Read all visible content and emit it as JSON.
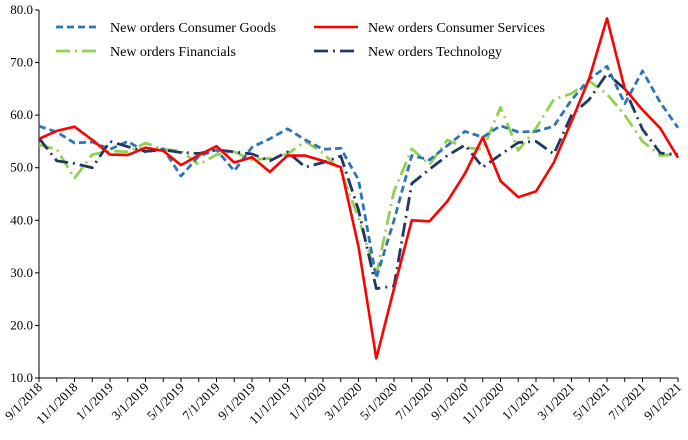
{
  "chart_data": {
    "type": "line",
    "title": "",
    "xlabel": "",
    "ylabel": "",
    "ylim": [
      10,
      80
    ],
    "yticks": [
      "10.0",
      "20.0",
      "30.0",
      "40.0",
      "50.0",
      "60.0",
      "70.0",
      "80.0"
    ],
    "xticks": [
      "9/1/2018",
      "11/1/2018",
      "1/1/2019",
      "3/1/2019",
      "5/1/2019",
      "7/1/2019",
      "9/1/2019",
      "11/1/2019",
      "1/1/2020",
      "3/1/2020",
      "5/1/2020",
      "7/1/2020",
      "9/1/2020",
      "11/1/2020",
      "1/1/2021",
      "3/1/2021",
      "5/1/2021",
      "7/1/2021",
      "9/1/2021"
    ],
    "x": [
      "2018-09",
      "2018-10",
      "2018-11",
      "2018-12",
      "2019-01",
      "2019-02",
      "2019-03",
      "2019-04",
      "2019-05",
      "2019-06",
      "2019-07",
      "2019-08",
      "2019-09",
      "2019-10",
      "2019-11",
      "2019-12",
      "2020-01",
      "2020-02",
      "2020-03",
      "2020-04",
      "2020-05",
      "2020-06",
      "2020-07",
      "2020-08",
      "2020-09",
      "2020-10",
      "2020-11",
      "2020-12",
      "2021-01",
      "2021-02",
      "2021-03",
      "2021-04",
      "2021-05",
      "2021-06",
      "2021-07",
      "2021-08",
      "2021-09"
    ],
    "series": [
      {
        "name": "New orders Consumer Goods",
        "color": "#2e75b6",
        "style": "short-dash",
        "values": [
          57.9,
          56.8,
          54.7,
          54.9,
          53.5,
          55.0,
          53.0,
          53.6,
          48.4,
          52.2,
          53.4,
          49.4,
          53.9,
          55.5,
          57.4,
          55.3,
          53.5,
          53.7,
          47.7,
          29.0,
          40.0,
          52.3,
          51.5,
          54.2,
          56.9,
          55.8,
          58.0,
          56.8,
          56.9,
          57.9,
          62.9,
          66.8,
          69.3,
          62.2,
          68.4,
          62.4,
          57.6
        ]
      },
      {
        "name": "New orders Consumer Services",
        "color": "#ff0000",
        "style": "solid",
        "values": [
          55.5,
          57.0,
          57.8,
          55.3,
          52.5,
          52.4,
          53.8,
          53.2,
          50.5,
          52.4,
          54.1,
          51.0,
          52.0,
          49.2,
          52.3,
          52.3,
          51.3,
          50.1,
          35.0,
          13.7,
          27.0,
          40.0,
          39.8,
          43.6,
          48.9,
          55.8,
          47.5,
          44.4,
          45.5,
          51.0,
          58.8,
          67.0,
          78.4,
          65.0,
          61.0,
          57.5,
          51.9
        ]
      },
      {
        "name": "New orders Financials",
        "color": "#92d050",
        "style": "long-dash-dot",
        "values": [
          54.3,
          53.5,
          48.0,
          52.5,
          53.2,
          53.0,
          54.7,
          53.5,
          53.2,
          50.6,
          52.5,
          53.0,
          51.5,
          51.8,
          52.6,
          55.0,
          52.8,
          49.4,
          40.5,
          29.6,
          45.5,
          53.6,
          50.6,
          55.3,
          53.8,
          53.5,
          61.5,
          53.3,
          57.5,
          63.0,
          64.1,
          66.5,
          64.0,
          60.0,
          55.0,
          52.3,
          52.6
        ]
      },
      {
        "name": "New orders Technology",
        "color": "#1f3864",
        "style": "long-dash-dot",
        "values": [
          55.6,
          51.3,
          50.8,
          50.0,
          55.0,
          54.0,
          53.1,
          53.4,
          52.9,
          52.7,
          53.4,
          53.0,
          52.6,
          51.3,
          53.0,
          50.1,
          51.0,
          52.2,
          42.0,
          27.0,
          27.5,
          47.0,
          49.7,
          52.3,
          54.3,
          50.1,
          52.5,
          54.8,
          55.0,
          52.6,
          60.0,
          63.0,
          67.9,
          65.0,
          57.3,
          52.8,
          52.5
        ]
      }
    ],
    "legend": "top, two columns",
    "grid": false
  }
}
